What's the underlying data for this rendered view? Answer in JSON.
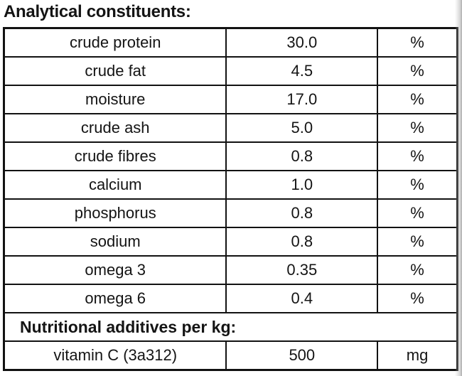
{
  "title": "Analytical constituents:",
  "constituents": [
    {
      "name": "crude protein",
      "value": "30.0",
      "unit": "%"
    },
    {
      "name": "crude fat",
      "value": "4.5",
      "unit": "%"
    },
    {
      "name": "moisture",
      "value": "17.0",
      "unit": "%"
    },
    {
      "name": "crude ash",
      "value": "5.0",
      "unit": "%"
    },
    {
      "name": "crude fibres",
      "value": "0.8",
      "unit": "%"
    },
    {
      "name": "calcium",
      "value": "1.0",
      "unit": "%"
    },
    {
      "name": "phosphorus",
      "value": "0.8",
      "unit": "%"
    },
    {
      "name": "sodium",
      "value": "0.8",
      "unit": "%"
    },
    {
      "name": "omega 3",
      "value": "0.35",
      "unit": "%"
    },
    {
      "name": "omega 6",
      "value": "0.4",
      "unit": "%"
    }
  ],
  "section_header": "Nutritional additives per kg:",
  "additives": [
    {
      "name": "vitamin C (3a312)",
      "value": "500",
      "unit": "mg"
    }
  ],
  "colors": {
    "text": "#141414",
    "border": "#121212",
    "background": "#ffffff",
    "page_edge_shadow": "#aeaeae"
  }
}
